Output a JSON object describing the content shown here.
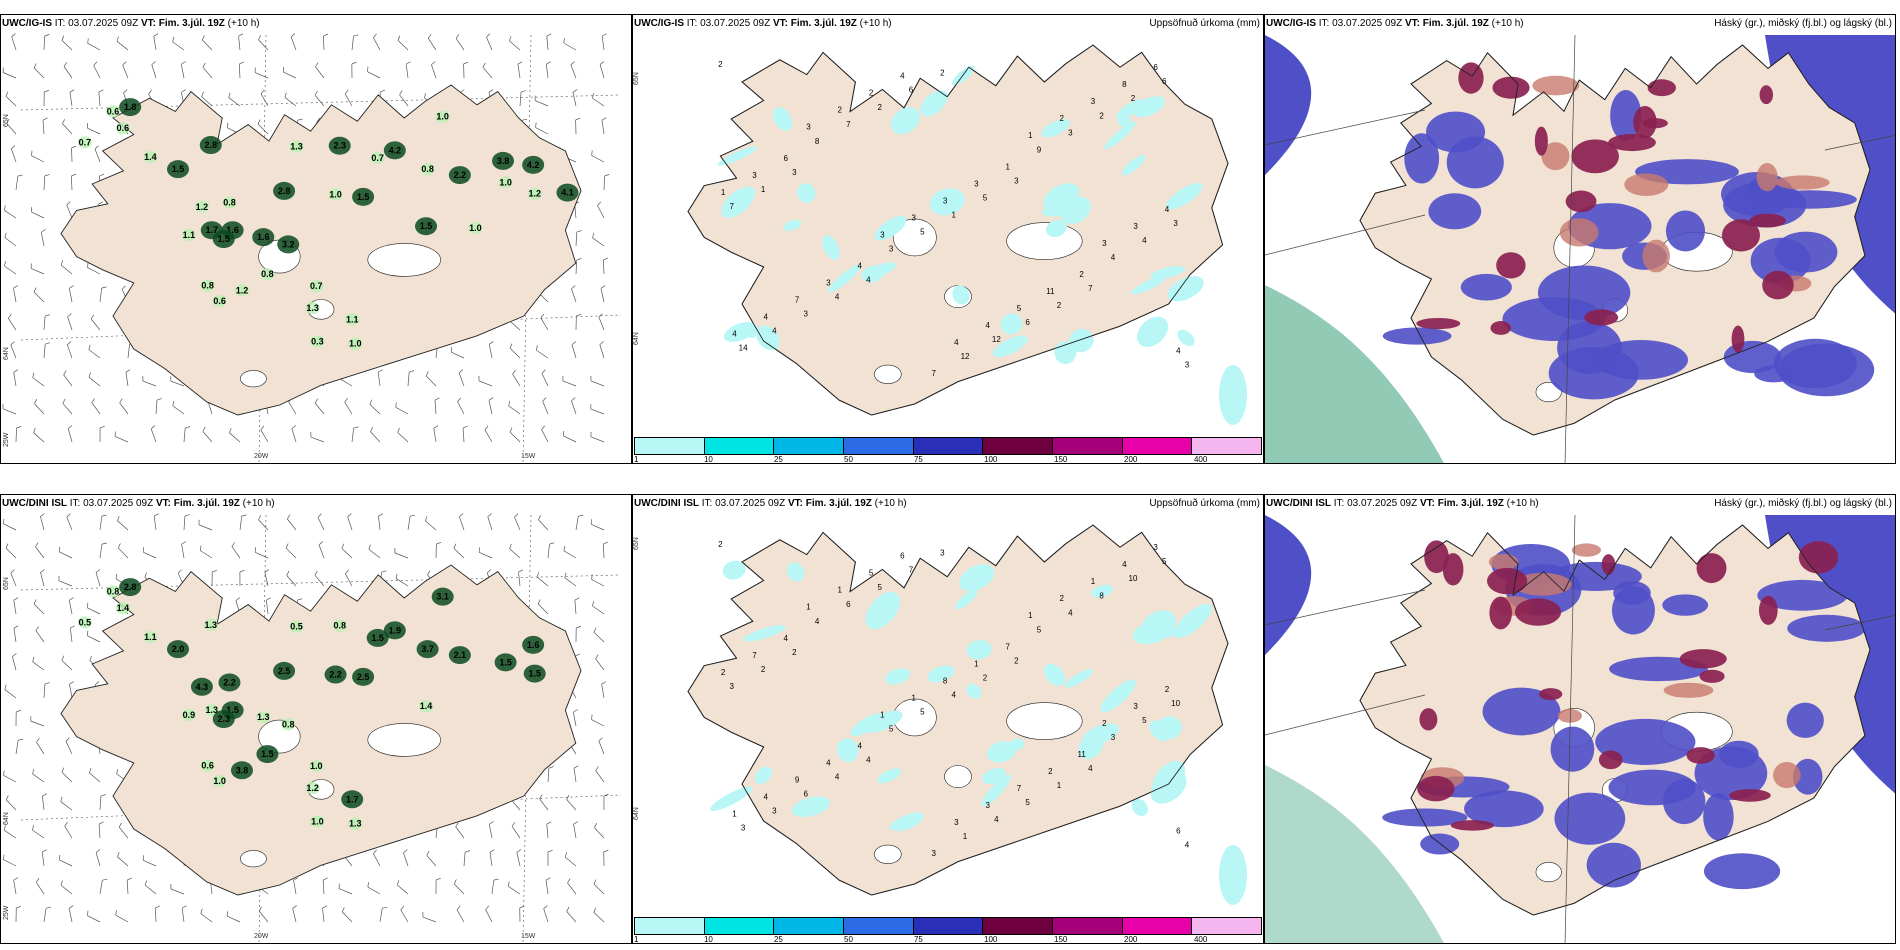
{
  "panels": [
    {
      "model": "UWC/IG-IS",
      "it_label": "IT:",
      "it_value": "03.07.2025 09Z",
      "vt_label": "VT:",
      "vt_value": "Fim. 3.júl. 19Z",
      "lead": "(+10 h)",
      "field": "",
      "lat_labels": [
        "65N",
        "64N",
        "25W"
      ],
      "lon_labels": [
        "20W",
        "15W"
      ],
      "values": [
        "0.6",
        "1.8",
        "0.7",
        "0.6",
        "1.4",
        "1.5",
        "2.8",
        "1.2",
        "0.8",
        "3.2",
        "1.6",
        "1.3",
        "2.3",
        "0.7",
        "4.2",
        "0.8",
        "1.0",
        "1.5",
        "1.0",
        "2.2",
        "1.7",
        "1.5",
        "1.1",
        "1.6",
        "0.8",
        "0.6",
        "1.2",
        "0.7",
        "1.3",
        "0.8",
        "1.1",
        "0.3",
        "1.0",
        "2.8",
        "1.5",
        "1.0",
        "4.2",
        "1.2",
        "4.1",
        "1.0",
        "3.8"
      ]
    },
    {
      "model": "UWC/IG-IS",
      "it_label": "IT:",
      "it_value": "03.07.2025 09Z",
      "vt_label": "VT:",
      "vt_value": "Fim. 3.júl. 19Z",
      "lead": "(+10 h)",
      "field": "Uppsöfnuð úrkoma (mm)",
      "lat_labels": [
        "65N",
        "64N"
      ],
      "values": [
        "2",
        "3",
        "4",
        "2",
        "3",
        "7",
        "6",
        "1",
        "4",
        "6",
        "5",
        "2",
        "2",
        "7",
        "3",
        "2",
        "1",
        "6",
        "2",
        "3",
        "4",
        "7",
        "5",
        "12",
        "3",
        "4",
        "14",
        "8",
        "3",
        "12",
        "9",
        "4",
        "3",
        "6",
        "4",
        "7",
        "1",
        "2",
        "6",
        "3",
        "3",
        "4",
        "3",
        "11",
        "8",
        "1",
        "7",
        "2",
        "3",
        "5",
        "3",
        "4",
        "4",
        "2",
        "3",
        "4",
        "2",
        "3",
        "4",
        "3",
        "3",
        "4",
        "1",
        "3",
        "4"
      ],
      "colorbar": {
        "ticks": [
          "1",
          "10",
          "25",
          "50",
          "75",
          "100",
          "150",
          "200",
          "400"
        ],
        "colors": [
          "#b9f6f6",
          "#00e4e4",
          "#00b7e8",
          "#2c6be6",
          "#2a2fb8",
          "#6e003f",
          "#a5007a",
          "#e800a8",
          "#f5b6ef"
        ]
      }
    },
    {
      "model": "UWC/IG-IS",
      "it_label": "IT:",
      "it_value": "03.07.2025 09Z",
      "vt_label": "VT:",
      "vt_value": "Fim. 3.júl. 19Z",
      "lead": "(+10 h)",
      "field": "Háský (gr.), miðský (fj.bl.) og lágský (bl.)"
    },
    {
      "model": "UWC/DINI ISL",
      "it_label": "IT:",
      "it_value": "03.07.2025 09Z",
      "vt_label": "VT:",
      "vt_value": "Fim. 3.júl. 19Z",
      "lead": "(+10 h)",
      "field": "",
      "lat_labels": [
        "65N",
        "64N",
        "25W"
      ],
      "lon_labels": [
        "20W",
        "15W"
      ],
      "values": [
        "0.8",
        "2.8",
        "0.5",
        "1.4",
        "1.1",
        "2.0",
        "1.3",
        "4.3",
        "2.2",
        "0.8",
        "1.5",
        "0.5",
        "0.8",
        "1.5",
        "1.9",
        "3.7",
        "2.2",
        "2.5",
        "3.1",
        "2.1",
        "1.3",
        "2.3",
        "0.9",
        "1.3",
        "0.6",
        "1.0",
        "3.8",
        "1.0",
        "1.2",
        "1.5",
        "1.7",
        "1.0",
        "1.3",
        "2.5",
        "1.4",
        "1.5",
        "1.6",
        "1.5"
      ]
    },
    {
      "model": "UWC/DINI ISL",
      "it_label": "IT:",
      "it_value": "03.07.2025 09Z",
      "vt_label": "VT:",
      "vt_value": "Fim. 3.júl. 19Z",
      "lead": "(+10 h)",
      "field": "Uppsöfnuð úrkoma (mm)",
      "lat_labels": [
        "65N",
        "64N"
      ],
      "values": [
        "2",
        "2",
        "4",
        "3",
        "2",
        "4",
        "5",
        "2",
        "4",
        "7",
        "2",
        "1",
        "10",
        "3",
        "6",
        "5",
        "4",
        "5",
        "8",
        "10",
        "3",
        "6",
        "5",
        "4",
        "4",
        "5",
        "3",
        "4",
        "5",
        "1",
        "5",
        "3",
        "4",
        "4",
        "4",
        "3",
        "7",
        "11",
        "3",
        "7",
        "4",
        "6",
        "1",
        "2",
        "4",
        "2",
        "9",
        "5",
        "8",
        "7",
        "1",
        "2",
        "4",
        "1",
        "1",
        "3",
        "2",
        "3",
        "1",
        "1",
        "1",
        "3",
        "1",
        "2",
        "6"
      ],
      "colorbar": {
        "ticks": [
          "1",
          "10",
          "25",
          "50",
          "75",
          "100",
          "150",
          "200",
          "400"
        ],
        "colors": [
          "#b9f6f6",
          "#00e4e4",
          "#00b7e8",
          "#2c6be6",
          "#2a2fb8",
          "#6e003f",
          "#a5007a",
          "#e800a8",
          "#f5b6ef"
        ]
      }
    },
    {
      "model": "UWC/DINI ISL",
      "it_label": "IT:",
      "it_value": "03.07.2025 09Z",
      "vt_label": "VT:",
      "vt_value": "Fim. 3.júl. 19Z",
      "lead": "(+10 h)",
      "field": "Háský (gr.), miðský (fj.bl.) og lágský (bl.)"
    }
  ],
  "colors": {
    "land": "#f1e2d3",
    "coast": "#222222",
    "green_light": "#b6f2b0",
    "green_dark": "#0b4a1e",
    "cyan": "#b9f6f6",
    "cloud_low": "#4f4fc8",
    "cloud_mid": "#8a2150",
    "cloud_high": "#c87a6e",
    "sea_green": "#36a07a"
  }
}
